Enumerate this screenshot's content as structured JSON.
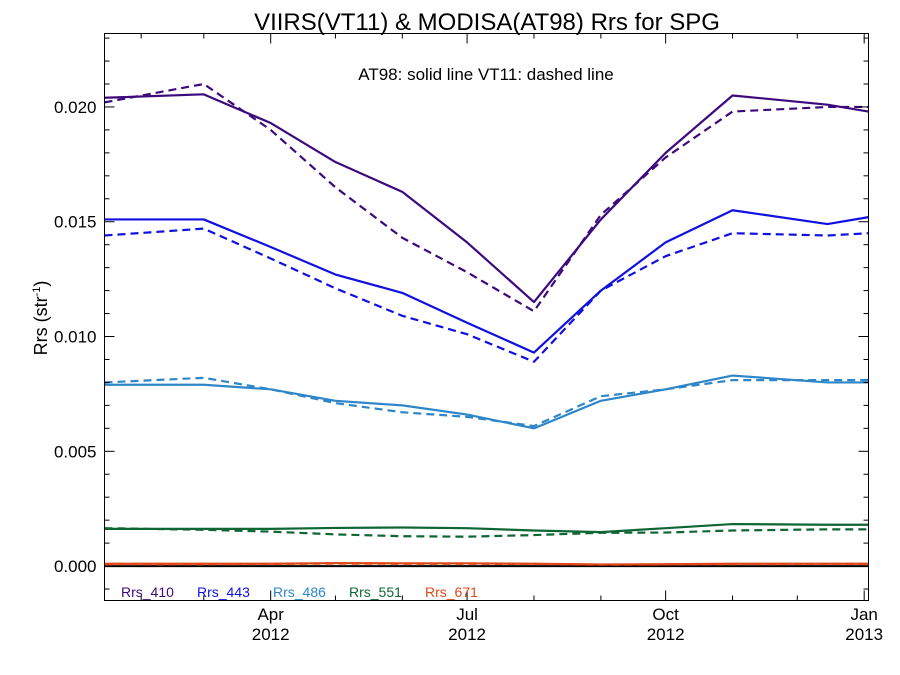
{
  "chart_data": {
    "type": "line",
    "title": "VIIRS(VT11) & MODISA(AT98)  Rrs for SPG",
    "annotation": "AT98: solid line   VT11: dashed line",
    "ylabel": "Rrs (str",
    "ylabel_sup": "-1",
    "ylabel_end": ")",
    "xlabel": "",
    "x_range": [
      "2012-01-15",
      "2013-01-03"
    ],
    "ylim": [
      -0.0015,
      0.0232
    ],
    "y_ticks": [
      {
        "value": 0.0,
        "label": "0.000"
      },
      {
        "value": 0.005,
        "label": "0.005"
      },
      {
        "value": 0.01,
        "label": "0.010"
      },
      {
        "value": 0.015,
        "label": "0.015"
      },
      {
        "value": 0.02,
        "label": "0.020"
      }
    ],
    "x_ticks": [
      {
        "date": "2012-04-01",
        "month": "Apr",
        "year": "2012"
      },
      {
        "date": "2012-07-01",
        "month": "Jul",
        "year": "2012"
      },
      {
        "date": "2012-10-01",
        "month": "Oct",
        "year": "2012"
      },
      {
        "date": "2013-01-01",
        "month": "Jan",
        "year": "2013"
      }
    ],
    "zero_line": 0.0,
    "series": [
      {
        "name": "Rrs_410",
        "color": "#3d0a7e",
        "style": "solid",
        "points": [
          [
            "2012-01-15",
            0.0204
          ],
          [
            "2012-03-01",
            0.02055
          ],
          [
            "2012-04-01",
            0.0193
          ],
          [
            "2012-05-01",
            0.0176
          ],
          [
            "2012-06-01",
            0.0163
          ],
          [
            "2012-07-01",
            0.0141
          ],
          [
            "2012-08-01",
            0.0115
          ],
          [
            "2012-09-01",
            0.0151
          ],
          [
            "2012-10-01",
            0.018
          ],
          [
            "2012-11-01",
            0.0205
          ],
          [
            "2012-12-15",
            0.0201
          ],
          [
            "2013-01-03",
            0.0198
          ]
        ]
      },
      {
        "name": "Rrs_410",
        "color": "#3d0a7e",
        "style": "dashed",
        "points": [
          [
            "2012-01-15",
            0.0202
          ],
          [
            "2012-03-01",
            0.021
          ],
          [
            "2012-04-01",
            0.019
          ],
          [
            "2012-05-01",
            0.0165
          ],
          [
            "2012-06-01",
            0.0143
          ],
          [
            "2012-07-01",
            0.0128
          ],
          [
            "2012-08-01",
            0.0111
          ],
          [
            "2012-09-01",
            0.0153
          ],
          [
            "2012-10-01",
            0.0178
          ],
          [
            "2012-11-01",
            0.0198
          ],
          [
            "2012-12-15",
            0.02
          ],
          [
            "2013-01-03",
            0.02
          ]
        ]
      },
      {
        "name": "Rrs_443",
        "color": "#1010e0",
        "style": "solid",
        "points": [
          [
            "2012-01-15",
            0.0151
          ],
          [
            "2012-03-01",
            0.0151
          ],
          [
            "2012-04-01",
            0.0139
          ],
          [
            "2012-05-01",
            0.0127
          ],
          [
            "2012-06-01",
            0.0119
          ],
          [
            "2012-07-01",
            0.0106
          ],
          [
            "2012-08-01",
            0.0093
          ],
          [
            "2012-09-01",
            0.012
          ],
          [
            "2012-10-01",
            0.0141
          ],
          [
            "2012-11-01",
            0.0155
          ],
          [
            "2012-12-15",
            0.0149
          ],
          [
            "2013-01-03",
            0.0152
          ]
        ]
      },
      {
        "name": "Rrs_443",
        "color": "#1010e0",
        "style": "dashed",
        "points": [
          [
            "2012-01-15",
            0.0144
          ],
          [
            "2012-03-01",
            0.0147
          ],
          [
            "2012-04-01",
            0.0134
          ],
          [
            "2012-05-01",
            0.0121
          ],
          [
            "2012-06-01",
            0.0109
          ],
          [
            "2012-07-01",
            0.0101
          ],
          [
            "2012-08-01",
            0.0089
          ],
          [
            "2012-09-01",
            0.012
          ],
          [
            "2012-10-01",
            0.0135
          ],
          [
            "2012-11-01",
            0.0145
          ],
          [
            "2012-12-15",
            0.0144
          ],
          [
            "2013-01-03",
            0.0145
          ]
        ]
      },
      {
        "name": "Rrs_486",
        "color": "#2e86c8",
        "style": "solid",
        "points": [
          [
            "2012-01-15",
            0.0079
          ],
          [
            "2012-03-01",
            0.0079
          ],
          [
            "2012-04-01",
            0.0077
          ],
          [
            "2012-05-01",
            0.0072
          ],
          [
            "2012-06-01",
            0.007
          ],
          [
            "2012-07-01",
            0.0066
          ],
          [
            "2012-08-01",
            0.006
          ],
          [
            "2012-09-01",
            0.0072
          ],
          [
            "2012-10-01",
            0.0077
          ],
          [
            "2012-11-01",
            0.0083
          ],
          [
            "2012-12-15",
            0.008
          ],
          [
            "2013-01-03",
            0.008
          ]
        ]
      },
      {
        "name": "Rrs_486",
        "color": "#2e86c8",
        "style": "dashed",
        "points": [
          [
            "2012-01-15",
            0.008
          ],
          [
            "2012-03-01",
            0.0082
          ],
          [
            "2012-04-01",
            0.0077
          ],
          [
            "2012-05-01",
            0.0071
          ],
          [
            "2012-06-01",
            0.0067
          ],
          [
            "2012-07-01",
            0.0065
          ],
          [
            "2012-08-01",
            0.0061
          ],
          [
            "2012-09-01",
            0.0074
          ],
          [
            "2012-10-01",
            0.0077
          ],
          [
            "2012-11-01",
            0.0081
          ],
          [
            "2012-12-15",
            0.0081
          ],
          [
            "2013-01-03",
            0.0081
          ]
        ]
      },
      {
        "name": "Rrs_551",
        "color": "#0e6634",
        "style": "solid",
        "points": [
          [
            "2012-01-15",
            0.00162
          ],
          [
            "2012-03-01",
            0.00162
          ],
          [
            "2012-04-01",
            0.00162
          ],
          [
            "2012-05-01",
            0.00166
          ],
          [
            "2012-06-01",
            0.00168
          ],
          [
            "2012-07-01",
            0.00165
          ],
          [
            "2012-08-01",
            0.00155
          ],
          [
            "2012-09-01",
            0.00148
          ],
          [
            "2012-10-01",
            0.00165
          ],
          [
            "2012-11-01",
            0.00183
          ],
          [
            "2012-12-15",
            0.0018
          ],
          [
            "2013-01-03",
            0.0018
          ]
        ]
      },
      {
        "name": "Rrs_551",
        "color": "#0e6634",
        "style": "dashed",
        "points": [
          [
            "2012-01-15",
            0.00165
          ],
          [
            "2012-03-01",
            0.00158
          ],
          [
            "2012-04-01",
            0.0015
          ],
          [
            "2012-05-01",
            0.00138
          ],
          [
            "2012-06-01",
            0.0013
          ],
          [
            "2012-07-01",
            0.00128
          ],
          [
            "2012-08-01",
            0.00135
          ],
          [
            "2012-09-01",
            0.00145
          ],
          [
            "2012-10-01",
            0.00146
          ],
          [
            "2012-11-01",
            0.00155
          ],
          [
            "2012-12-15",
            0.0016
          ],
          [
            "2013-01-03",
            0.0016
          ]
        ]
      },
      {
        "name": "Rrs_671",
        "color": "#e0481a",
        "style": "solid",
        "points": [
          [
            "2012-01-15",
            0.0001
          ],
          [
            "2012-03-01",
            0.0001
          ],
          [
            "2012-04-01",
            0.0001
          ],
          [
            "2012-05-01",
            0.00013
          ],
          [
            "2012-06-01",
            0.00012
          ],
          [
            "2012-07-01",
            0.00012
          ],
          [
            "2012-08-01",
            0.0001
          ],
          [
            "2012-09-01",
            7e-05
          ],
          [
            "2012-10-01",
            8e-05
          ],
          [
            "2012-11-01",
            0.0001
          ],
          [
            "2012-12-15",
            0.0001
          ],
          [
            "2013-01-03",
            0.0001
          ]
        ]
      },
      {
        "name": "Rrs_671",
        "color": "#e0481a",
        "style": "dashed",
        "points": [
          [
            "2012-01-15",
            8e-05
          ],
          [
            "2012-03-01",
            8e-05
          ],
          [
            "2012-04-01",
            9e-05
          ],
          [
            "2012-05-01",
            0.00011
          ],
          [
            "2012-06-01",
            0.0001
          ],
          [
            "2012-07-01",
            0.0001
          ],
          [
            "2012-08-01",
            9e-05
          ],
          [
            "2012-09-01",
            6e-05
          ],
          [
            "2012-10-01",
            7e-05
          ],
          [
            "2012-11-01",
            8e-05
          ],
          [
            "2012-12-15",
            9e-05
          ],
          [
            "2013-01-03",
            9e-05
          ]
        ]
      }
    ],
    "legend": [
      {
        "label": "Rrs_410",
        "color": "#3d0a7e"
      },
      {
        "label": "Rrs_443",
        "color": "#1010e0"
      },
      {
        "label": "Rrs_486",
        "color": "#2e86c8"
      },
      {
        "label": "Rrs_551",
        "color": "#0e6634"
      },
      {
        "label": "Rrs_671",
        "color": "#e0481a"
      }
    ],
    "legend_placement": "bottom-left inside plot",
    "grid": false
  }
}
